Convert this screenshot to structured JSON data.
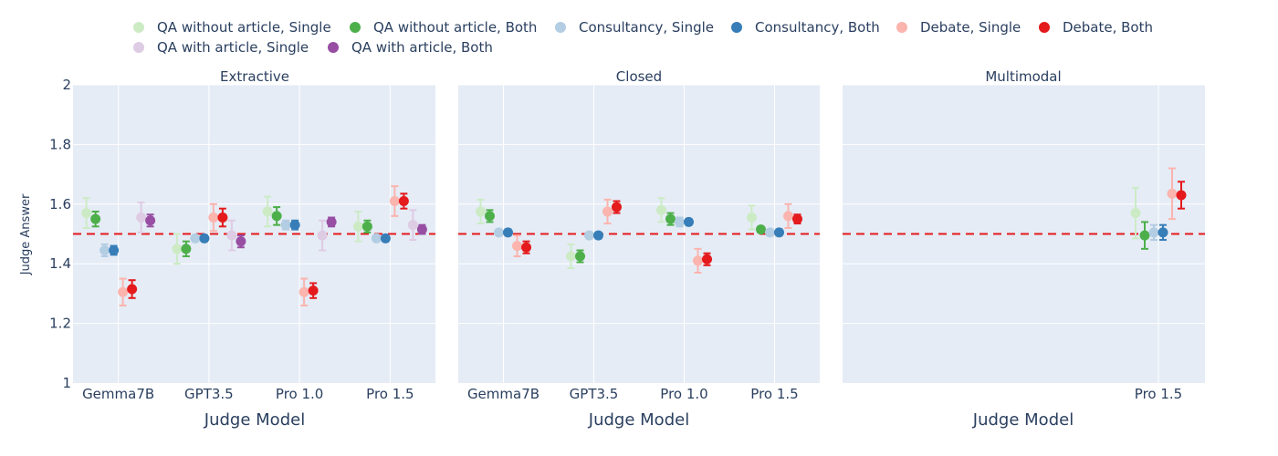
{
  "chart_data": {
    "type": "scatter",
    "xlabel": "Judge Model",
    "ylabel": "Judge Answer",
    "ylim": [
      1,
      2
    ],
    "yticks": [
      "1",
      "1.2",
      "1.4",
      "1.6",
      "1.8",
      "2"
    ],
    "ytick_values": [
      1,
      1.2,
      1.4,
      1.6,
      1.8,
      2
    ],
    "reference_line": {
      "y": 1.5,
      "color": "#e41a1c",
      "style": "dashed"
    },
    "legend_position": "top",
    "series": [
      {
        "name": "QA without article, Single",
        "color": "#ccebc5"
      },
      {
        "name": "QA without article, Both",
        "color": "#4daf4a"
      },
      {
        "name": "Consultancy, Single",
        "color": "#b3cde3"
      },
      {
        "name": "Consultancy, Both",
        "color": "#377eb8"
      },
      {
        "name": "Debate, Single",
        "color": "#fbb4ae"
      },
      {
        "name": "Debate, Both",
        "color": "#e41a1c"
      },
      {
        "name": "QA with article, Single",
        "color": "#decbe4"
      },
      {
        "name": "QA with article, Both",
        "color": "#984ea3"
      }
    ],
    "panels": [
      {
        "title": "Extractive",
        "categories": [
          "Gemma7B",
          "GPT3.5",
          "Pro 1.0",
          "Pro 1.5"
        ],
        "series_order": [
          0,
          1,
          2,
          3,
          4,
          5,
          6,
          7
        ],
        "points": [
          [
            [
              1.57,
              0.05
            ],
            [
              1.45,
              0.05
            ],
            [
              1.575,
              0.05
            ],
            [
              1.525,
              0.05
            ]
          ],
          [
            [
              1.55,
              0.025
            ],
            [
              1.45,
              0.025
            ],
            [
              1.56,
              0.03
            ],
            [
              1.525,
              0.02
            ]
          ],
          [
            [
              1.445,
              0.02
            ],
            [
              1.485,
              0.01
            ],
            [
              1.53,
              0.015
            ],
            [
              1.485,
              0.01
            ]
          ],
          [
            [
              1.445,
              0.015
            ],
            [
              1.485,
              0.01
            ],
            [
              1.53,
              0.015
            ],
            [
              1.485,
              0.01
            ]
          ],
          [
            [
              1.305,
              0.045
            ],
            [
              1.555,
              0.045
            ],
            [
              1.305,
              0.045
            ],
            [
              1.61,
              0.05
            ]
          ],
          [
            [
              1.315,
              0.03
            ],
            [
              1.555,
              0.03
            ],
            [
              1.31,
              0.025
            ],
            [
              1.61,
              0.025
            ]
          ],
          [
            [
              1.555,
              0.05
            ],
            [
              1.495,
              0.05
            ],
            [
              1.495,
              0.05
            ],
            [
              1.53,
              0.05
            ]
          ],
          [
            [
              1.545,
              0.02
            ],
            [
              1.475,
              0.02
            ],
            [
              1.54,
              0.015
            ],
            [
              1.515,
              0.015
            ]
          ]
        ]
      },
      {
        "title": "Closed",
        "categories": [
          "Gemma7B",
          "GPT3.5",
          "Pro 1.0",
          "Pro 1.5"
        ],
        "series_order": [
          0,
          1,
          2,
          3,
          4,
          5
        ],
        "points": [
          [
            [
              1.575,
              0.04
            ],
            [
              1.425,
              0.04
            ],
            [
              1.58,
              0.04
            ],
            [
              1.555,
              0.04
            ]
          ],
          [
            [
              1.56,
              0.02
            ],
            [
              1.425,
              0.02
            ],
            [
              1.55,
              0.02
            ],
            [
              1.515,
              0.01
            ]
          ],
          [
            [
              1.505,
              0.01
            ],
            [
              1.495,
              0.01
            ],
            [
              1.54,
              0.015
            ],
            [
              1.505,
              0.01
            ]
          ],
          [
            [
              1.505,
              0.01
            ],
            [
              1.495,
              0.01
            ],
            [
              1.54,
              0.01
            ],
            [
              1.505,
              0.01
            ]
          ],
          [
            [
              1.46,
              0.035
            ],
            [
              1.575,
              0.04
            ],
            [
              1.41,
              0.04
            ],
            [
              1.56,
              0.04
            ]
          ],
          [
            [
              1.455,
              0.02
            ],
            [
              1.59,
              0.02
            ],
            [
              1.415,
              0.02
            ],
            [
              1.55,
              0.015
            ]
          ]
        ]
      },
      {
        "title": "Multimodal",
        "categories": [
          "Pro 1.5"
        ],
        "series_order": [
          0,
          1,
          2,
          3,
          4,
          5
        ],
        "points": [
          [
            [
              1.57,
              0.085
            ]
          ],
          [
            [
              1.495,
              0.045
            ]
          ],
          [
            [
              1.505,
              0.025
            ]
          ],
          [
            [
              1.505,
              0.025
            ]
          ],
          [
            [
              1.635,
              0.085
            ]
          ],
          [
            [
              1.63,
              0.045
            ]
          ]
        ]
      }
    ]
  }
}
